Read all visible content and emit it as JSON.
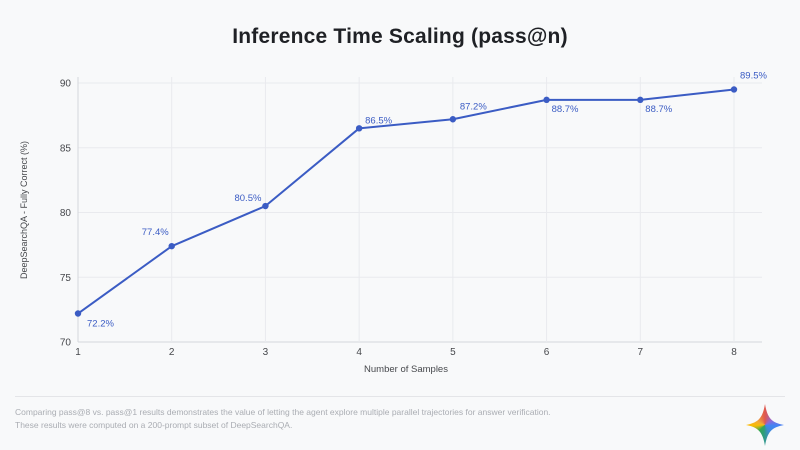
{
  "title": "Inference Time Scaling (pass@n)",
  "chart_data": {
    "type": "line",
    "title": "Inference Time Scaling (pass@n)",
    "x": [
      1,
      2,
      3,
      4,
      5,
      6,
      7,
      8
    ],
    "values": [
      72.2,
      77.4,
      80.5,
      86.5,
      87.2,
      88.7,
      88.7,
      89.5
    ],
    "point_labels": [
      "72.2%",
      "77.4%",
      "80.5%",
      "86.5%",
      "87.2%",
      "88.7%",
      "88.7%",
      "89.5%"
    ],
    "xticks": [
      "1",
      "2",
      "3",
      "4",
      "5",
      "6",
      "7",
      "8"
    ],
    "yticks": [
      70,
      75,
      80,
      85,
      90
    ],
    "ylim": [
      70,
      90
    ],
    "xlabel": "Number of Samples",
    "ylabel": "DeepSearchQA - Fully Correct (%)",
    "grid": true,
    "legend": false,
    "line_color": "#3b5cc4"
  },
  "footer": {
    "line1": "Comparing pass@8 vs. pass@1 results demonstrates the value of letting the agent explore multiple parallel trajectories for answer verification.",
    "line2": "These results were computed on a 200-prompt subset of DeepSearchQA.",
    "logo": "gemini-sparkle"
  },
  "colors": {
    "background": "#f8f9fa",
    "accent_blue": "#3b5cc4",
    "grid": "#e9eaee",
    "axis": "#d5d7dc",
    "text_dark": "#1f2125",
    "text_gray": "#46484c",
    "footer_gray": "#aaadb3"
  }
}
